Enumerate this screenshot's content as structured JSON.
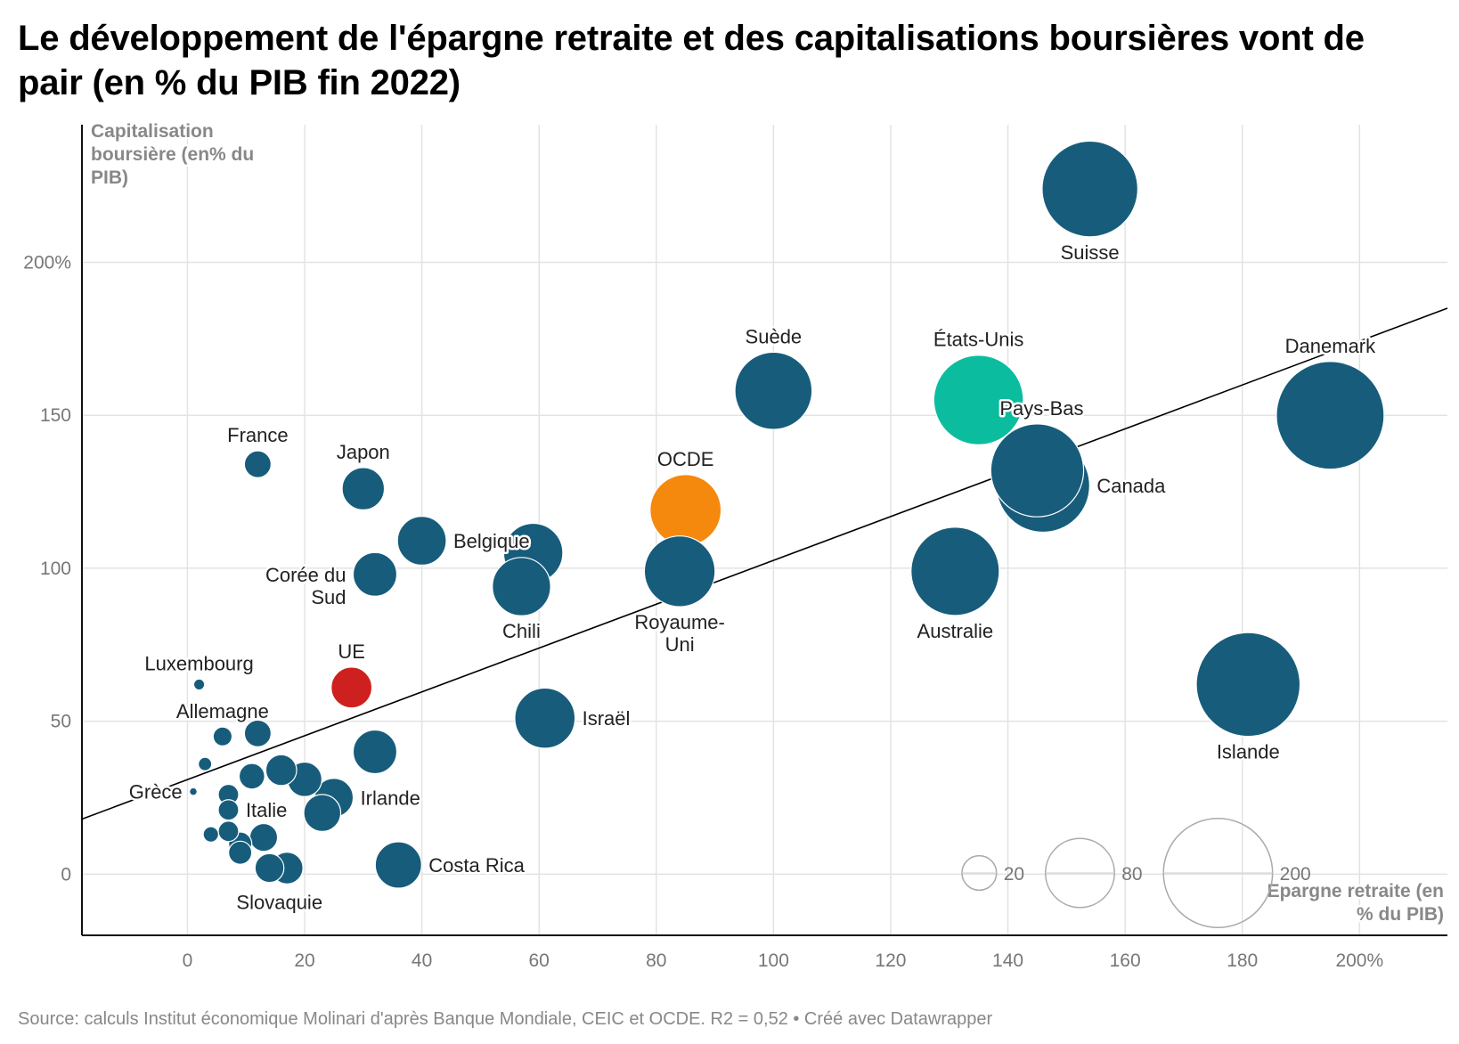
{
  "title": "Le développement de l'épargne retraite et des capitalisations boursières vont de pair (en % du PIB fin 2022)",
  "source": "Source: calculs Institut économique Molinari d'après Banque Mondiale, CEIC et OCDE. R2 = 0,52 • Créé avec Datawrapper",
  "colors": {
    "country": "#175c7b",
    "ocde": "#f5890d",
    "ue": "#cf2020",
    "etats_unis": "#0bbd9e",
    "grid": "#e3e3e3",
    "trend": "#000000"
  },
  "chart_data": {
    "type": "scatter",
    "title": "Le développement de l'épargne retraite et des capitalisations boursières vont de pair (en % du PIB fin 2022)",
    "xlabel": [
      "Epargne retraite (en",
      "% du PIB)"
    ],
    "ylabel": [
      "Capitalisation",
      "boursière (en% du",
      "PIB)"
    ],
    "xlim": [
      -18,
      215
    ],
    "ylim": [
      -20,
      245
    ],
    "x_ticks": [
      {
        "v": 0,
        "label": "0"
      },
      {
        "v": 20,
        "label": "20"
      },
      {
        "v": 40,
        "label": "40"
      },
      {
        "v": 60,
        "label": "60"
      },
      {
        "v": 80,
        "label": "80"
      },
      {
        "v": 100,
        "label": "100"
      },
      {
        "v": 120,
        "label": "120"
      },
      {
        "v": 140,
        "label": "140"
      },
      {
        "v": 160,
        "label": "160"
      },
      {
        "v": 180,
        "label": "180"
      },
      {
        "v": 200,
        "label": "200%"
      }
    ],
    "y_ticks": [
      {
        "v": 0,
        "label": "0"
      },
      {
        "v": 50,
        "label": "50"
      },
      {
        "v": 100,
        "label": "100"
      },
      {
        "v": 150,
        "label": "150"
      },
      {
        "v": 200,
        "label": "200%"
      }
    ],
    "grid": true,
    "size_encoding": "épargne retraite (% du PIB)",
    "size_legend": [
      {
        "value": 20,
        "label": "20"
      },
      {
        "value": 80,
        "label": "80"
      },
      {
        "value": 200,
        "label": "200"
      }
    ],
    "trendline": {
      "x": [
        -18,
        215
      ],
      "y": [
        18,
        185
      ]
    },
    "points": [
      {
        "name": "Suisse",
        "x": 154,
        "y": 224,
        "color": "country",
        "label_pos": "below"
      },
      {
        "name": "Suède",
        "x": 100,
        "y": 158,
        "color": "country",
        "label_pos": "above"
      },
      {
        "name": "États-Unis",
        "x": 135,
        "y": 155,
        "color": "etats_unis",
        "label_pos": "above"
      },
      {
        "name": "Danemark",
        "x": 195,
        "y": 150,
        "color": "country",
        "label_pos": "above"
      },
      {
        "name": "Pays-Bas",
        "x": 145,
        "y": 132,
        "color": "country",
        "label_pos": "above-right"
      },
      {
        "name": "Canada",
        "x": 146,
        "y": 127,
        "color": "country",
        "label_pos": "right"
      },
      {
        "name": "France",
        "x": 12,
        "y": 134,
        "color": "country",
        "label_pos": "above"
      },
      {
        "name": "Japon",
        "x": 30,
        "y": 126,
        "color": "country",
        "label_pos": "above"
      },
      {
        "name": "OCDE",
        "x": 85,
        "y": 119,
        "color": "ocde",
        "label_pos": "above"
      },
      {
        "name": "Belgique",
        "x": 40,
        "y": 109,
        "color": "country",
        "label_pos": "right"
      },
      {
        "name": "",
        "x": 59,
        "y": 105,
        "color": "country"
      },
      {
        "name": "Corée du Sud",
        "x": 32,
        "y": 98,
        "color": "country",
        "label_pos": "left"
      },
      {
        "name": "Royaume-Uni",
        "x": 84,
        "y": 99,
        "color": "country",
        "label_pos": "below"
      },
      {
        "name": "Australie",
        "x": 131,
        "y": 99,
        "color": "country",
        "label_pos": "below"
      },
      {
        "name": "Chili",
        "x": 57,
        "y": 94,
        "color": "country",
        "label_pos": "below"
      },
      {
        "name": "Luxembourg",
        "x": 2,
        "y": 62,
        "color": "country",
        "label_pos": "above"
      },
      {
        "name": "UE",
        "x": 28,
        "y": 61,
        "color": "ue",
        "label_pos": "above"
      },
      {
        "name": "Islande",
        "x": 181,
        "y": 62,
        "color": "country",
        "label_pos": "below"
      },
      {
        "name": "Israël",
        "x": 61,
        "y": 51,
        "color": "country",
        "label_pos": "right"
      },
      {
        "name": "",
        "x": 12,
        "y": 46,
        "color": "country"
      },
      {
        "name": "Allemagne",
        "x": 6,
        "y": 45,
        "color": "country",
        "label_pos": "above"
      },
      {
        "name": "",
        "x": 32,
        "y": 40,
        "color": "country"
      },
      {
        "name": "",
        "x": 3,
        "y": 36,
        "color": "country"
      },
      {
        "name": "",
        "x": 16,
        "y": 34,
        "color": "country"
      },
      {
        "name": "",
        "x": 11,
        "y": 32,
        "color": "country"
      },
      {
        "name": "",
        "x": 20,
        "y": 31,
        "color": "country"
      },
      {
        "name": "Grèce",
        "x": 1,
        "y": 27,
        "color": "country",
        "label_pos": "left"
      },
      {
        "name": "",
        "x": 7,
        "y": 26,
        "color": "country"
      },
      {
        "name": "Irlande",
        "x": 25,
        "y": 25,
        "color": "country",
        "label_pos": "right"
      },
      {
        "name": "Italie",
        "x": 7,
        "y": 21,
        "color": "country",
        "label_pos": "right"
      },
      {
        "name": "",
        "x": 23,
        "y": 20,
        "color": "country"
      },
      {
        "name": "",
        "x": 7,
        "y": 14,
        "color": "country"
      },
      {
        "name": "",
        "x": 4,
        "y": 13,
        "color": "country"
      },
      {
        "name": "",
        "x": 13,
        "y": 12,
        "color": "country"
      },
      {
        "name": "",
        "x": 9,
        "y": 10,
        "color": "country"
      },
      {
        "name": "",
        "x": 9,
        "y": 7,
        "color": "country"
      },
      {
        "name": "Costa Rica",
        "x": 36,
        "y": 3,
        "color": "country",
        "label_pos": "right"
      },
      {
        "name": "Slovaquie",
        "x": 14,
        "y": 2,
        "color": "country",
        "label_pos": "below-right"
      },
      {
        "name": "",
        "x": 17,
        "y": 2,
        "color": "country"
      }
    ]
  }
}
